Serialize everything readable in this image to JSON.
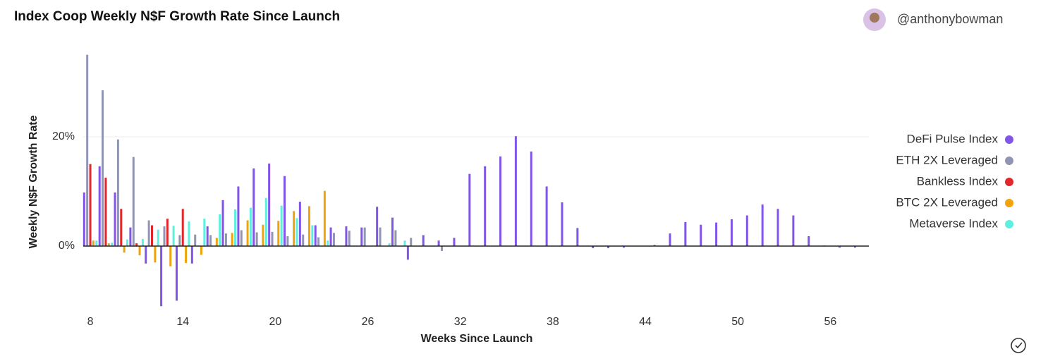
{
  "chart_data": {
    "type": "bar",
    "title": "Index Coop Weekly N$F Growth Rate Since Launch",
    "author": "@anthonybowman",
    "x_label": "Weeks Since Launch",
    "y_label": "Weekly N$F Growth Rate",
    "x": [
      8,
      9,
      10,
      11,
      12,
      13,
      14,
      15,
      16,
      17,
      18,
      19,
      20,
      21,
      22,
      23,
      24,
      25,
      26,
      27,
      28,
      29,
      30,
      31,
      32,
      33,
      34,
      35,
      36,
      37,
      38,
      39,
      40,
      41,
      42,
      43,
      44,
      45,
      46,
      47,
      48,
      49,
      50,
      51,
      52,
      53,
      54,
      55,
      56,
      57,
      58
    ],
    "xlim": [
      7.54,
      58.5
    ],
    "xticks": [
      8,
      14,
      20,
      26,
      32,
      38,
      44,
      50,
      56
    ],
    "ylim": [
      -11.1,
      34.7
    ],
    "yticks": [
      {
        "value": 0,
        "label": "0%"
      },
      {
        "value": 20,
        "label": "20%"
      }
    ],
    "grid": true,
    "legend": "right",
    "series": [
      {
        "name": "DeFi Pulse Index",
        "color": "#8155e8",
        "values": [
          9.8,
          14.6,
          9.8,
          3.4,
          -3.2,
          -11,
          -10,
          -3.2,
          3.6,
          8.4,
          10.9,
          14.2,
          15.1,
          12.8,
          8.1,
          3.8,
          3.4,
          3.6,
          3.4,
          7.2,
          5.2,
          -2.5,
          2,
          1,
          1.5,
          13.2,
          14.6,
          16.4,
          20.1,
          17.3,
          10.9,
          8,
          3.3,
          -0.4,
          -0.4,
          -0.3,
          0,
          0.2,
          2.3,
          4.4,
          3.9,
          4.3,
          4.9,
          5.6,
          7.6,
          6.8,
          5.6,
          1.8,
          0.1,
          -0.3,
          -0.3
        ]
      },
      {
        "name": "ETH 2X Leveraged",
        "color": "#9095b3",
        "values": [
          35,
          28.5,
          19.5,
          16.3,
          4.7,
          3.6,
          2,
          2.1,
          2,
          2.3,
          2.9,
          2.5,
          2.6,
          1.8,
          2.1,
          1.6,
          2.4,
          2.8,
          3.4,
          3.4,
          2.9,
          1.5,
          null,
          -0.9,
          null,
          null,
          null,
          null,
          null,
          null,
          null,
          null,
          null,
          null,
          null,
          null,
          null,
          null,
          null,
          null,
          null,
          null,
          null,
          null,
          null,
          null,
          null,
          null,
          null,
          null,
          null
        ]
      },
      {
        "name": "Bankless Index",
        "color": "#e3262a",
        "values": [
          15,
          12.5,
          6.8,
          0.5,
          3.8,
          5,
          6.8,
          null,
          null,
          null,
          null,
          null,
          null,
          null,
          null,
          null,
          null,
          null,
          null,
          null,
          null,
          null,
          null,
          null,
          null,
          null,
          null,
          null,
          null,
          null,
          null,
          null,
          null,
          null,
          null,
          null,
          null,
          null,
          null,
          null,
          null,
          null,
          null,
          null,
          null,
          null,
          null,
          null,
          null,
          null,
          null
        ]
      },
      {
        "name": "BTC 2X Leveraged",
        "color": "#f0a30a",
        "values": [
          1,
          0.5,
          -1.2,
          -1.7,
          -3,
          -3.7,
          -3.1,
          -1.6,
          1.5,
          2.4,
          4.7,
          3.9,
          4.6,
          6.4,
          7.3,
          10.1,
          null,
          null,
          null,
          null,
          null,
          null,
          null,
          null,
          null,
          null,
          null,
          null,
          null,
          null,
          null,
          null,
          null,
          null,
          null,
          null,
          null,
          null,
          null,
          null,
          null,
          null,
          null,
          null,
          null,
          null,
          null,
          null,
          null,
          null,
          null
        ]
      },
      {
        "name": "Metaverse Index",
        "color": "#5cf0e0",
        "values": [
          1,
          0.6,
          1.2,
          1.3,
          3,
          3.7,
          4.5,
          5,
          5.8,
          6.7,
          7,
          8.8,
          7.4,
          5.1,
          3.8,
          1,
          null,
          null,
          null,
          0.5,
          1,
          null,
          null,
          null,
          null,
          null,
          null,
          null,
          null,
          null,
          null,
          null,
          null,
          null,
          null,
          null,
          null,
          null,
          null,
          null,
          null,
          null,
          null,
          null,
          null,
          null,
          null,
          null,
          null,
          null,
          null
        ]
      }
    ]
  }
}
